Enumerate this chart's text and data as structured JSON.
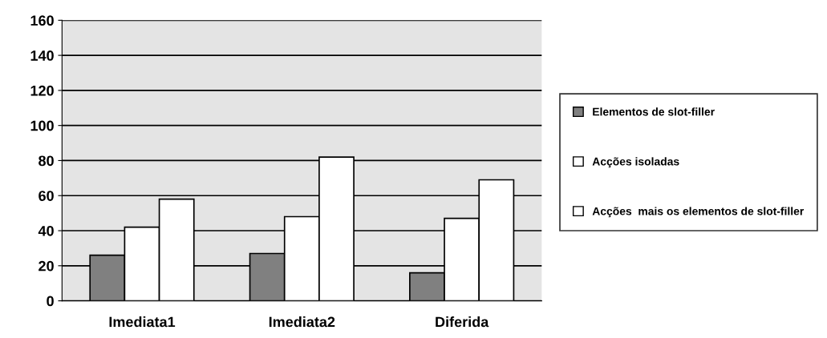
{
  "chart_data": {
    "type": "bar",
    "categories": [
      "Imediata1",
      "Imediata2",
      "Diferida"
    ],
    "series": [
      {
        "name": "Elementos de slot-filler",
        "color": "#808080",
        "values": [
          26,
          27,
          16
        ]
      },
      {
        "name": "Acções isoladas",
        "color": "#ffffff",
        "values": [
          42,
          48,
          47
        ]
      },
      {
        "name": "Acções  mais os elementos de slot-filler",
        "color": "#ffffff",
        "values": [
          58,
          82,
          69
        ]
      }
    ],
    "ylim": [
      0,
      160
    ],
    "yticks": [
      0,
      20,
      40,
      60,
      80,
      100,
      120,
      140,
      160
    ],
    "grid": "y",
    "legend": "right"
  }
}
